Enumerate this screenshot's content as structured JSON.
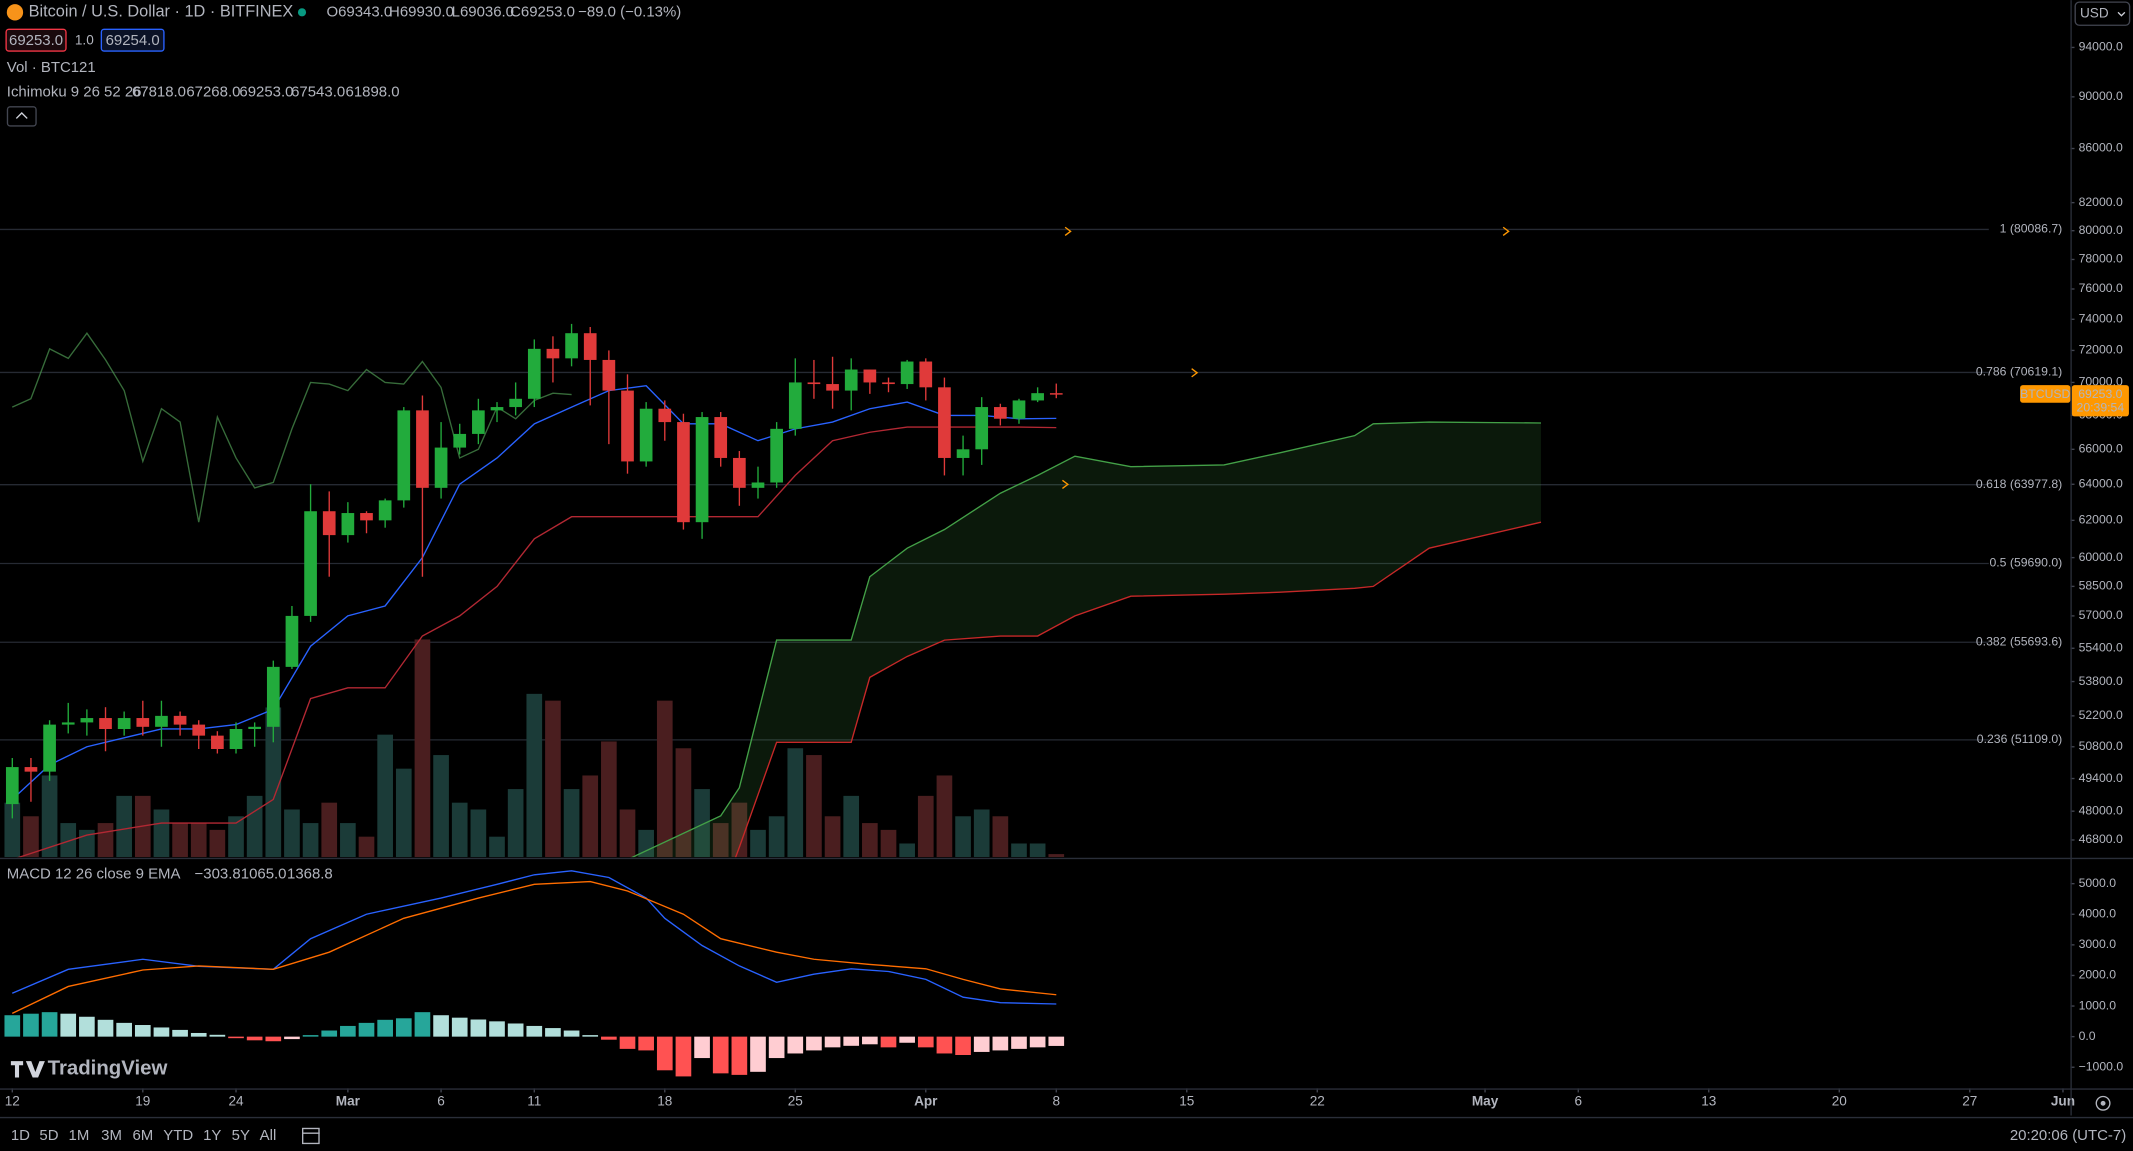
{
  "header": {
    "bid": "69253.0",
    "spread": "1.0",
    "ask": "69254.0",
    "currency": "USD"
  },
  "chart_data": [
    {
      "type": "candlestick",
      "title": "Bitcoin / U.S. Dollar · 1D · BITFINEX",
      "ohlc_labels": [
        "O69343.0",
        "H69930.0",
        "L69036.0",
        "C69253.0",
        "−89.0 (−0.13%)"
      ],
      "symbol": "BTCUSD",
      "countdown": "20:39:54",
      "close_label": "69253.0",
      "open": [
        48300,
        49900,
        49700,
        51800,
        51900,
        52100,
        51600,
        52100,
        51700,
        52200,
        51800,
        51300,
        50700,
        51600,
        51700,
        54500,
        57000,
        62500,
        61200,
        62400,
        62000,
        63100,
        68300,
        63800,
        66100,
        66900,
        68300,
        68500,
        69000,
        72100,
        71500,
        73100,
        71400,
        69500,
        65300,
        68400,
        67600,
        61900,
        67900,
        65500,
        63800,
        64100,
        67200,
        70000,
        69900,
        69500,
        70800,
        70000,
        69900,
        71300,
        69700,
        65500,
        66000,
        68500,
        67800,
        68900,
        69343
      ],
      "high": [
        50300,
        50300,
        52000,
        52800,
        52500,
        52600,
        52400,
        52900,
        52900,
        52400,
        52000,
        51500,
        51900,
        51900,
        54800,
        57500,
        64000,
        63600,
        63000,
        62500,
        63200,
        68500,
        69200,
        67600,
        67500,
        69000,
        68800,
        70000,
        72700,
        72900,
        73700,
        73500,
        72000,
        70500,
        68800,
        68900,
        68100,
        68200,
        68200,
        65900,
        65000,
        67600,
        71500,
        71400,
        71600,
        71500,
        70800,
        70300,
        71400,
        71500,
        70300,
        66800,
        69100,
        68700,
        69000,
        69700,
        69930
      ],
      "low": [
        47700,
        48400,
        49300,
        51400,
        51300,
        50600,
        51300,
        51300,
        50800,
        51300,
        50700,
        50500,
        50500,
        50800,
        51000,
        54400,
        56700,
        59000,
        60800,
        61300,
        61600,
        62700,
        59000,
        63200,
        65700,
        66300,
        67600,
        68000,
        68500,
        70000,
        71000,
        68600,
        66300,
        64600,
        65000,
        66500,
        61500,
        61000,
        65000,
        62800,
        63200,
        63800,
        66800,
        69000,
        68400,
        68300,
        69300,
        69400,
        69600,
        68900,
        64500,
        64500,
        65100,
        67400,
        67500,
        68800,
        69036
      ],
      "close": [
        49900,
        49700,
        51800,
        51900,
        52100,
        51600,
        52100,
        51700,
        52200,
        51800,
        51300,
        50700,
        51600,
        51700,
        54500,
        57000,
        62500,
        61200,
        62400,
        62000,
        63100,
        68300,
        63800,
        66100,
        66900,
        68300,
        68500,
        69000,
        72100,
        71500,
        73100,
        71400,
        69500,
        65300,
        68400,
        67600,
        61900,
        67900,
        65500,
        63800,
        64100,
        67200,
        70000,
        69900,
        69500,
        70800,
        70000,
        69900,
        71300,
        69700,
        65500,
        66000,
        68500,
        67800,
        68900,
        69343,
        69253
      ],
      "up_color": "#22ab3c",
      "down_color": "#e03a3a",
      "tag_color": "#ff9800",
      "volume": {
        "name": "Vol · BTC",
        "up_color": "#1b3b38",
        "down_color": "#4a1e1f",
        "values": [
          2200,
          1650,
          3300,
          1375,
          1100,
          1375,
          2475,
          2475,
          1925,
          1375,
          1375,
          1100,
          1650,
          2475,
          6050,
          1925,
          1375,
          2200,
          1375,
          825,
          4950,
          3575,
          8800,
          4125,
          2200,
          1925,
          825,
          2750,
          6600,
          6325,
          2750,
          3300,
          4675,
          1925,
          1100,
          6325,
          4400,
          2750,
          1375,
          2200,
          1100,
          1650,
          4400,
          4125,
          1650,
          2475,
          1375,
          1100,
          550,
          2475,
          3300,
          1650,
          1925,
          1650,
          550,
          550,
          121
        ]
      },
      "ichimoku": {
        "name": "Ichimoku 9 26 52 26",
        "cloud_color": "rgba(76,175,80,0.14)",
        "series": [
          {
            "color": "#2962ff",
            "value_label": "67818.0",
            "x": [
              0,
              2,
              4,
              6,
              8,
              10,
              12,
              14,
              16,
              18,
              20,
              22,
              24,
              26,
              28,
              30,
              32,
              34,
              36,
              38,
              40,
              42,
              44,
              46,
              48,
              50,
              52,
              54,
              56
            ],
            "values": [
              48500,
              50000,
              50800,
              51200,
              51600,
              51600,
              51800,
              52500,
              55500,
              57000,
              57500,
              60000,
              64000,
              65500,
              67500,
              68500,
              69500,
              69800,
              67500,
              67500,
              66500,
              67200,
              67600,
              68400,
              68800,
              68000,
              68000,
              67800,
              67818
            ]
          },
          {
            "color": "#b22833",
            "value_label": "67268.0",
            "x": [
              0,
              4,
              8,
              12,
              14,
              16,
              18,
              20,
              22,
              24,
              26,
              28,
              30,
              32,
              34,
              36,
              38,
              40,
              42,
              44,
              46,
              48,
              50,
              52,
              54,
              56
            ],
            "values": [
              46000,
              47000,
              47500,
              47500,
              48500,
              53000,
              53500,
              53500,
              56000,
              57000,
              58500,
              61000,
              62200,
              62200,
              62200,
              62200,
              62200,
              62200,
              64500,
              66500,
              67000,
              67300,
              67300,
              67300,
              67300,
              67268
            ]
          },
          {
            "color": "#4e9a52",
            "value_label": "69253.0",
            "x": [
              0,
              1,
              2,
              3,
              4,
              5,
              6,
              7,
              8,
              9,
              10,
              11,
              12,
              13,
              14,
              15,
              16,
              17,
              18,
              19,
              20,
              21,
              22,
              23,
              24,
              25,
              26,
              27,
              28,
              29,
              30
            ],
            "values": [
              68500,
              69000,
              72100,
              71500,
              73100,
              71400,
              69500,
              65300,
              68400,
              67600,
              61900,
              67900,
              65500,
              63800,
              64100,
              67200,
              70000,
              69900,
              69500,
              70800,
              70000,
              69900,
              71300,
              69700,
              65500,
              66000,
              68500,
              67800,
              68900,
              69343,
              69253
            ]
          },
          {
            "color": "#43a047",
            "value_label": "67543.0",
            "x": [
              27,
              33,
              38,
              39,
              41,
              45,
              46,
              48,
              50,
              53,
              55,
              57,
              60,
              65,
              68,
              72,
              73,
              76,
              82
            ],
            "values": [
              44000,
              46000,
              47800,
              49000,
              55800,
              55800,
              59000,
              60500,
              61500,
              63500,
              64500,
              65600,
              65000,
              65100,
              65800,
              66800,
              67500,
              67600,
              67543
            ]
          },
          {
            "color": "#c62828",
            "value_label": "61898.0",
            "x": [
              27,
              33,
              38,
              39,
              41,
              45,
              46,
              48,
              50,
              53,
              55,
              57,
              60,
              65,
              68,
              72,
              73,
              76,
              82
            ],
            "values": [
              43000,
              43000,
              44500,
              46500,
              51000,
              51000,
              54000,
              55000,
              55800,
              56000,
              56000,
              57000,
              58000,
              58100,
              58200,
              58400,
              58500,
              60500,
              61898
            ]
          }
        ]
      },
      "fib_color": "#262a33",
      "fib_levels": [
        {
          "label": "1 (80086.7)",
          "price": 80086.7
        },
        {
          "label": "0.786 (70619.1)",
          "price": 70619.1
        },
        {
          "label": "0.618 (63977.8)",
          "price": 63977.8
        },
        {
          "label": "0.5 (59690.0)",
          "price": 59690.0
        },
        {
          "label": "0.382 (55693.6)",
          "price": 55693.6
        },
        {
          "label": "0.236 (51109.0)",
          "price": 51109.0
        }
      ],
      "log_scale": true,
      "grid": false,
      "ylim": [
        46100,
        98000
      ],
      "yticks": [
        {
          "value": 94000,
          "label": "94000.0"
        },
        {
          "value": 90000,
          "label": "90000.0"
        },
        {
          "value": 86000,
          "label": "86000.0"
        },
        {
          "value": 82000,
          "label": "82000.0"
        },
        {
          "value": 80000,
          "label": "80000.0"
        },
        {
          "value": 78000,
          "label": "78000.0"
        },
        {
          "value": 76000,
          "label": "76000.0"
        },
        {
          "value": 74000,
          "label": "74000.0"
        },
        {
          "value": 72000,
          "label": "72000.0"
        },
        {
          "value": 70000,
          "label": "70000.0"
        },
        {
          "value": 68000,
          "label": "68000.0"
        },
        {
          "value": 66000,
          "label": "66000.0"
        },
        {
          "value": 64000,
          "label": "64000.0"
        },
        {
          "value": 62000,
          "label": "62000.0"
        },
        {
          "value": 60000,
          "label": "60000.0"
        },
        {
          "value": 58500,
          "label": "58500.0"
        },
        {
          "value": 57000,
          "label": "57000.0"
        },
        {
          "value": 55400,
          "label": "55400.0"
        },
        {
          "value": 53800,
          "label": "53800.0"
        },
        {
          "value": 52200,
          "label": "52200.0"
        },
        {
          "value": 50800,
          "label": "50800.0"
        },
        {
          "value": 49400,
          "label": "49400.0"
        },
        {
          "value": 48000,
          "label": "48000.0"
        },
        {
          "value": 46800,
          "label": "46800.0"
        }
      ],
      "xlim": [
        -0.66,
        110.4
      ],
      "xticks": [
        {
          "value": 0,
          "label": "12"
        },
        {
          "value": 7,
          "label": "19"
        },
        {
          "value": 12,
          "label": "24"
        },
        {
          "value": 18,
          "label": "Mar"
        },
        {
          "value": 23,
          "label": "6"
        },
        {
          "value": 28,
          "label": "11"
        },
        {
          "value": 35,
          "label": "18"
        },
        {
          "value": 42,
          "label": "25"
        },
        {
          "value": 49,
          "label": "Apr"
        },
        {
          "value": 56,
          "label": "8"
        },
        {
          "value": 63,
          "label": "15"
        },
        {
          "value": 70,
          "label": "22"
        },
        {
          "value": 79,
          "label": "May"
        },
        {
          "value": 84,
          "label": "6"
        },
        {
          "value": 91,
          "label": "13"
        },
        {
          "value": 98,
          "label": "20"
        },
        {
          "value": 105,
          "label": "27"
        },
        {
          "value": 110,
          "label": "Jun"
        }
      ]
    },
    {
      "type": "macd",
      "title": "MACD 12 26 close 9 EMA",
      "histogram": {
        "value_label": "−303.8",
        "colors": [
          "#26a69a",
          "#b2dfdb",
          "#ffcdd2",
          "#ff5252"
        ],
        "values": [
          700,
          750,
          800,
          750,
          650,
          550,
          450,
          380,
          300,
          220,
          120,
          60,
          -50,
          -120,
          -150,
          -80,
          50,
          200,
          350,
          450,
          550,
          600,
          800,
          700,
          620,
          560,
          500,
          430,
          350,
          280,
          200,
          50,
          -100,
          -400,
          -450,
          -1100,
          -1300,
          -700,
          -1200,
          -1250,
          -1150,
          -700,
          -550,
          -450,
          -350,
          -300,
          -250,
          -350,
          -200,
          -350,
          -550,
          -600,
          -500,
          -450,
          -400,
          -350,
          -303.8
        ]
      },
      "series": [
        {
          "color": "#2962ff",
          "value_label": "1065.0",
          "x": [
            0,
            3,
            7,
            10,
            14,
            16,
            19,
            23,
            26,
            28,
            30,
            32,
            34,
            35,
            37,
            39,
            41,
            43,
            45,
            47,
            49,
            51,
            53,
            56
          ],
          "values": [
            1420,
            2200,
            2530,
            2300,
            2200,
            3200,
            4000,
            4530,
            4980,
            5290,
            5420,
            5200,
            4530,
            3870,
            2980,
            2310,
            1780,
            2040,
            2220,
            2130,
            1870,
            1290,
            1110,
            1065
          ]
        },
        {
          "color": "#ff6d00",
          "value_label": "1368.8",
          "x": [
            0,
            3,
            7,
            10,
            14,
            17,
            21,
            25,
            28,
            31,
            33,
            36,
            38,
            41,
            43,
            46,
            49,
            51,
            53,
            56
          ],
          "values": [
            760,
            1640,
            2180,
            2310,
            2200,
            2760,
            3870,
            4530,
            4980,
            5070,
            4760,
            4000,
            3200,
            2760,
            2530,
            2360,
            2220,
            1870,
            1560,
            1368.8
          ]
        }
      ],
      "ylim": [
        -1690,
        5780
      ],
      "yticks": [
        {
          "value": 5000,
          "label": "5000.0"
        },
        {
          "value": 4000,
          "label": "4000.0"
        },
        {
          "value": 3000,
          "label": "3000.0"
        },
        {
          "value": 2000,
          "label": "2000.0"
        },
        {
          "value": 1000,
          "label": "1000.0"
        },
        {
          "value": 0,
          "label": "0.0"
        },
        {
          "value": -1000,
          "label": "−1000.0"
        }
      ]
    }
  ],
  "branding": "TradingView",
  "toolbar": {
    "ranges": [
      "1D",
      "5D",
      "1M",
      "3M",
      "6M",
      "YTD",
      "1Y",
      "5Y",
      "All"
    ],
    "clock": "20:20:06 (UTC-7)"
  }
}
